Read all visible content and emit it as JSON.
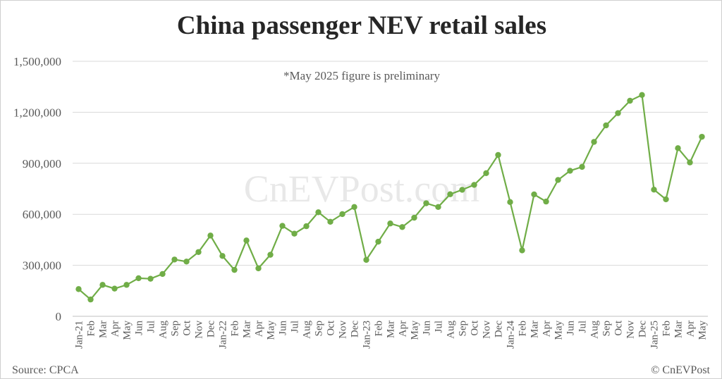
{
  "chart_data": {
    "type": "line",
    "title": "China passenger NEV retail sales",
    "note": "*May 2025 figure is preliminary",
    "source": "Source: CPCA",
    "credit": "© CnEVPost",
    "watermark": "CnEVPost.com",
    "ylim": [
      0,
      1500000
    ],
    "yticks": [
      {
        "value": 0,
        "label": "0"
      },
      {
        "value": 300000,
        "label": "300,000"
      },
      {
        "value": 600000,
        "label": "600,000"
      },
      {
        "value": 900000,
        "label": "900,000"
      },
      {
        "value": 1200000,
        "label": "1,200,000"
      },
      {
        "value": 1500000,
        "label": "1,500,000"
      }
    ],
    "grid": true,
    "color": "#70ad47",
    "categories": [
      "Jan-21",
      "Feb",
      "Mar",
      "Apr",
      "May",
      "Jun",
      "Jul",
      "Aug",
      "Sep",
      "Oct",
      "Nov",
      "Dec",
      "Jan-22",
      "Feb",
      "Mar",
      "Apr",
      "May",
      "Jun",
      "Jul",
      "Aug",
      "Sep",
      "Oct",
      "Nov",
      "Dec",
      "Jan-23",
      "Feb",
      "Mar",
      "Apr",
      "May",
      "Jun",
      "Jul",
      "Aug",
      "Sep",
      "Oct",
      "Nov",
      "Dec",
      "Jan-24",
      "Feb",
      "Mar",
      "Apr",
      "May",
      "Jun",
      "Jul",
      "Aug",
      "Sep",
      "Oct",
      "Nov",
      "Dec",
      "Jan-25",
      "Feb",
      "Mar",
      "Apr",
      "May"
    ],
    "values": [
      160000,
      99000,
      185000,
      163000,
      185000,
      224000,
      221000,
      249000,
      334000,
      322000,
      378000,
      475000,
      355000,
      273000,
      446000,
      282000,
      362000,
      532000,
      486000,
      530000,
      612000,
      556000,
      601000,
      643000,
      332000,
      439000,
      546000,
      525000,
      580000,
      665000,
      643000,
      718000,
      744000,
      773000,
      842000,
      949000,
      672000,
      388000,
      717000,
      675000,
      802000,
      856000,
      879000,
      1026000,
      1123000,
      1195000,
      1268000,
      1302000,
      745000,
      688000,
      989000,
      905000,
      1056000
    ]
  }
}
